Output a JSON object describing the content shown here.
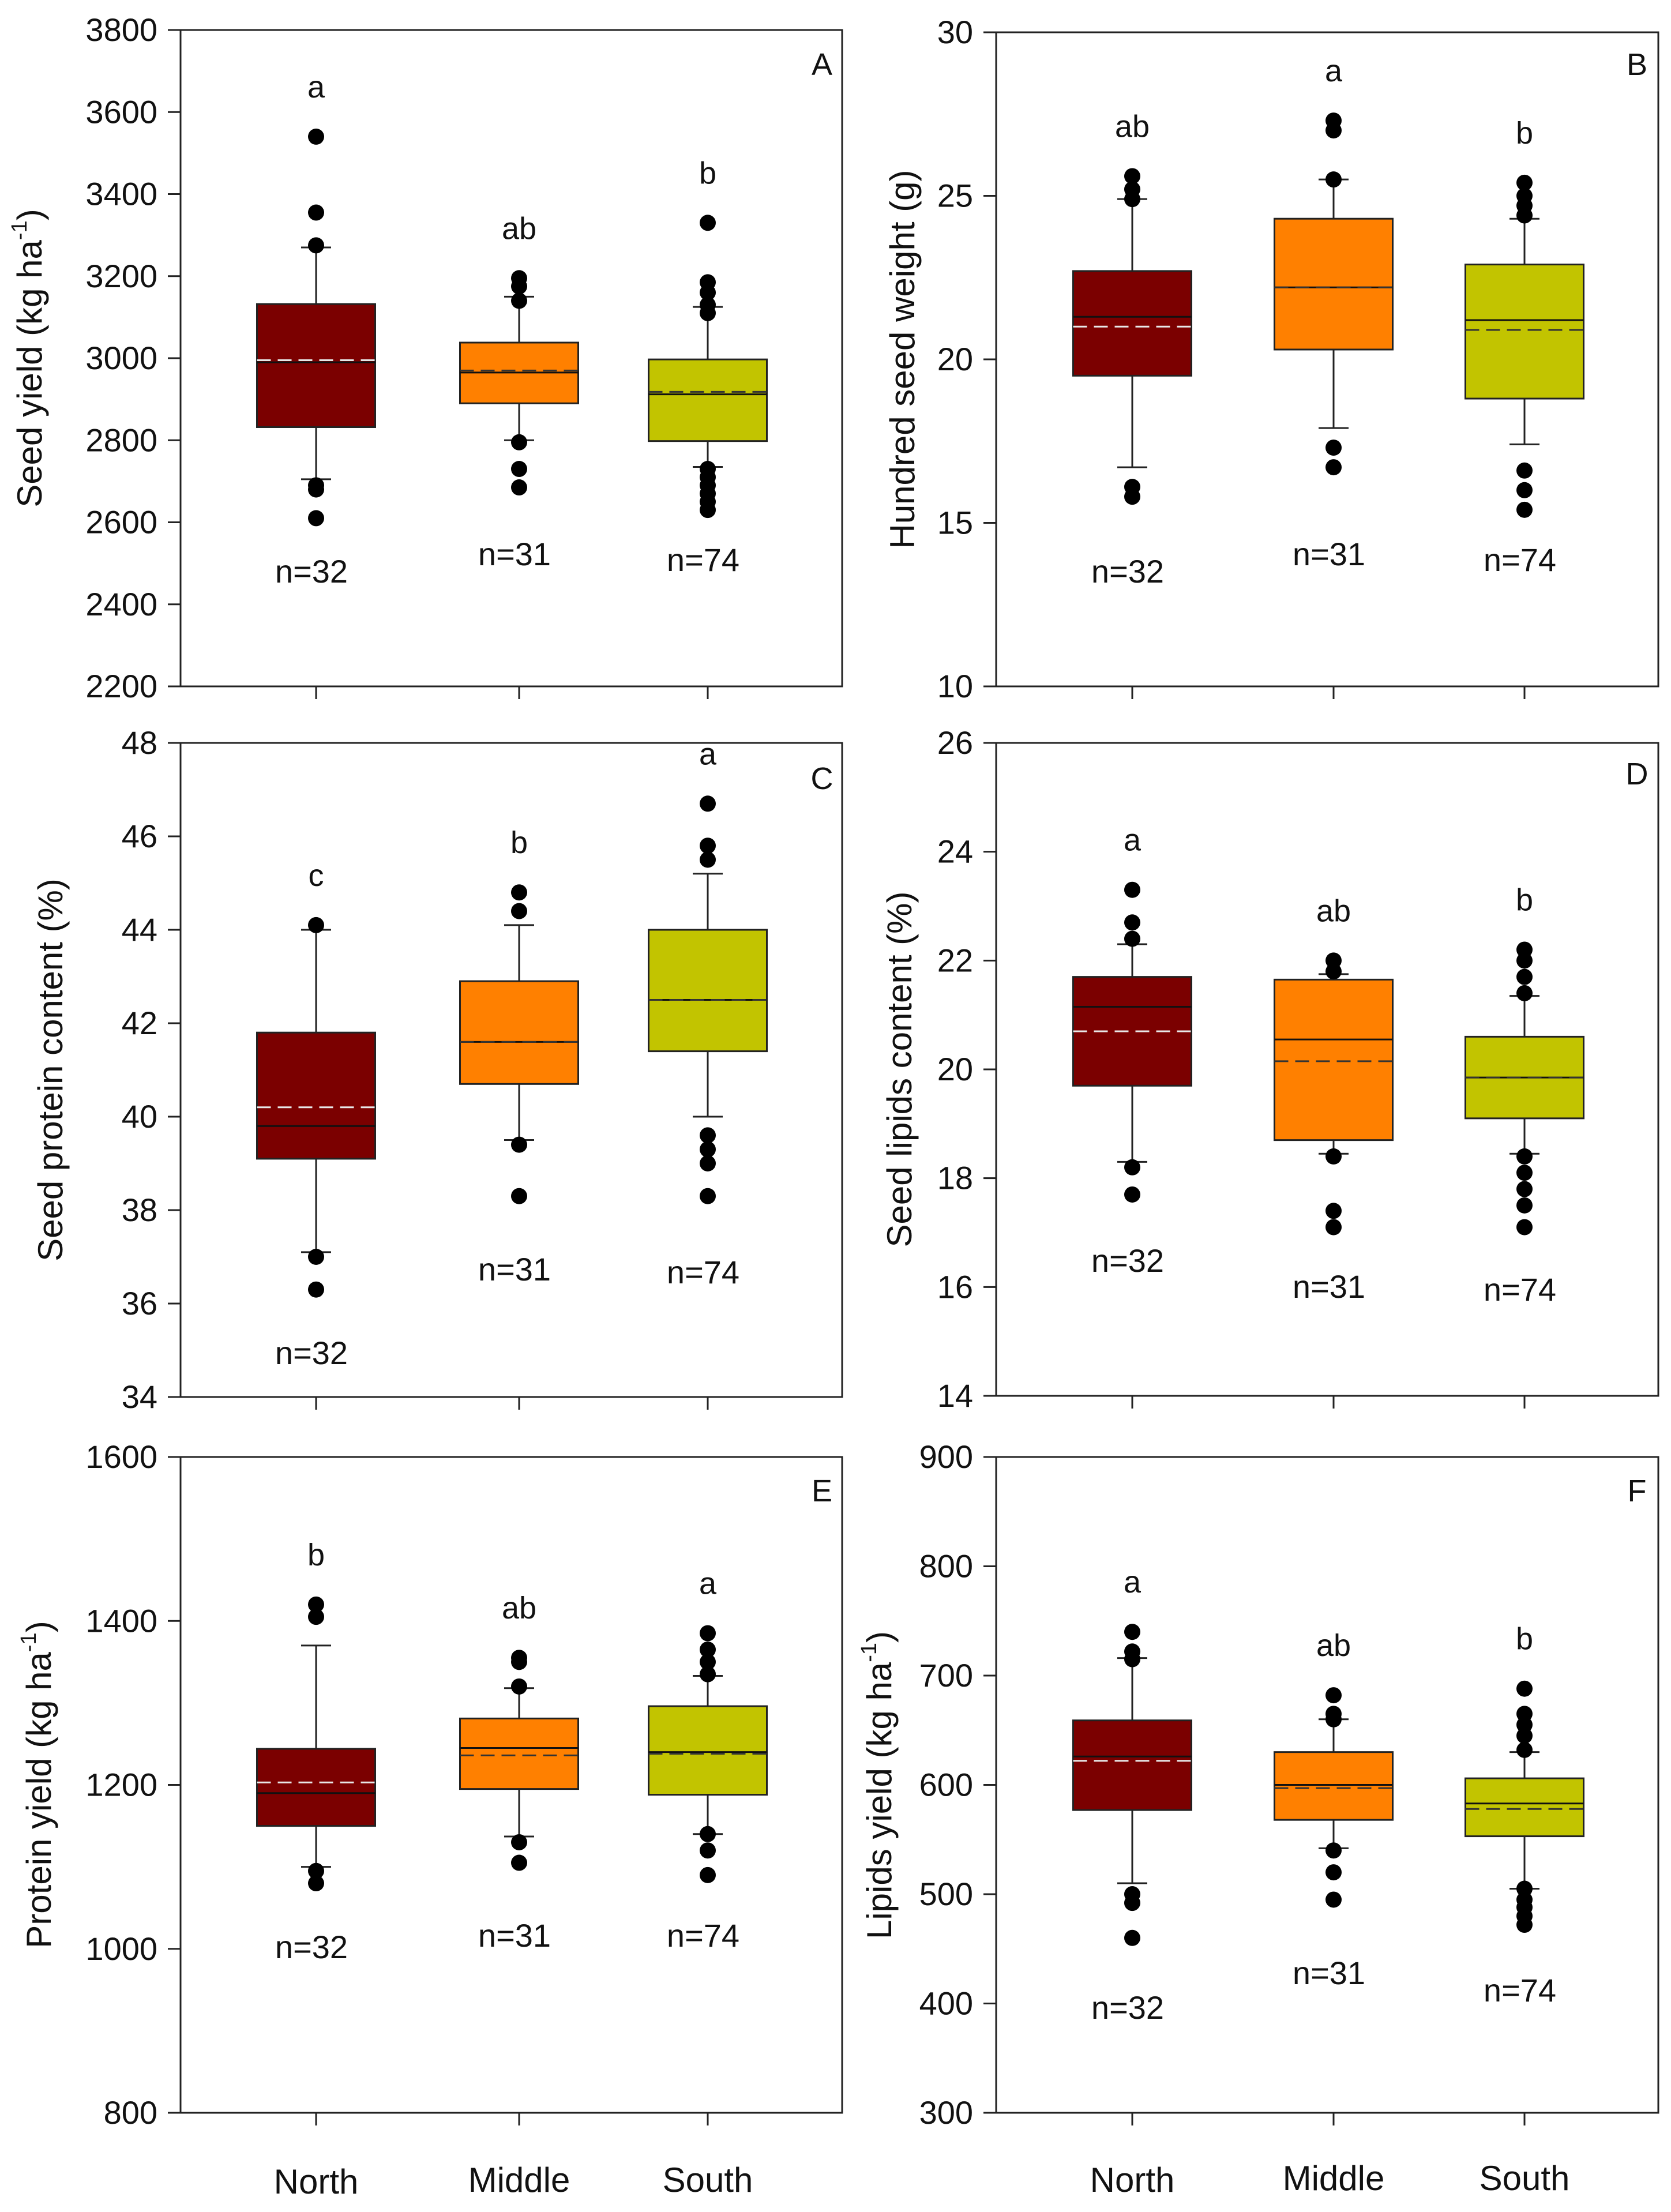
{
  "chart_data": [
    {
      "type": "box",
      "panel": "A",
      "ylabel": "Seed yield (kg ha",
      "ylabel_sup": "-1",
      "ylabel_close": ")",
      "ylim": [
        2200,
        3800
      ],
      "yticks": [
        2200,
        2400,
        2600,
        2800,
        3000,
        3200,
        3400,
        3600,
        3800
      ],
      "categories": [
        "North",
        "Middle",
        "South"
      ],
      "colors": [
        "#7b0000",
        "#ff8000",
        "#c2c400"
      ],
      "boxes": [
        {
          "q1": 2832,
          "median": 2990,
          "mean": 2995,
          "q3": 3132,
          "whisker_low": 2705,
          "whisker_high": 3270,
          "outliers": [
            2610,
            2680,
            2690,
            3275,
            3355,
            3540
          ],
          "n": "n=32",
          "sig": "a"
        },
        {
          "q1": 2890,
          "median": 2965,
          "mean": 2970,
          "q3": 3038,
          "whisker_low": 2800,
          "whisker_high": 3150,
          "outliers": [
            2685,
            2730,
            2795,
            3140,
            3175,
            3195
          ],
          "n": "n=31",
          "sig": "ab"
        },
        {
          "q1": 2798,
          "median": 2912,
          "mean": 2918,
          "q3": 2997,
          "whisker_low": 2735,
          "whisker_high": 3125,
          "outliers": [
            2630,
            2650,
            2670,
            2690,
            2710,
            2730,
            3110,
            3130,
            3160,
            3185,
            3330
          ],
          "n": "n=74",
          "sig": "b"
        }
      ]
    },
    {
      "type": "box",
      "panel": "B",
      "ylabel": "Hundred seed weight (g)",
      "ylim": [
        10,
        30
      ],
      "yticks": [
        10,
        15,
        20,
        25,
        30
      ],
      "categories": [
        "North",
        "Middle",
        "South"
      ],
      "colors": [
        "#7b0000",
        "#ff8000",
        "#c2c400"
      ],
      "boxes": [
        {
          "q1": 19.5,
          "median": 21.3,
          "mean": 21.0,
          "q3": 22.7,
          "whisker_low": 16.7,
          "whisker_high": 24.9,
          "outliers": [
            15.8,
            16.1,
            24.9,
            25.2,
            25.6
          ],
          "n": "n=32",
          "sig": "ab"
        },
        {
          "q1": 20.3,
          "median": 22.2,
          "mean": 22.2,
          "q3": 24.3,
          "whisker_low": 17.9,
          "whisker_high": 25.5,
          "outliers": [
            16.7,
            17.3,
            25.5,
            27.0,
            27.3
          ],
          "n": "n=31",
          "sig": "a"
        },
        {
          "q1": 18.8,
          "median": 21.2,
          "mean": 20.9,
          "q3": 22.9,
          "whisker_low": 17.4,
          "whisker_high": 24.3,
          "outliers": [
            15.4,
            16.0,
            16.6,
            24.4,
            24.7,
            25.0,
            25.4
          ],
          "n": "n=74",
          "sig": "b"
        }
      ]
    },
    {
      "type": "box",
      "panel": "C",
      "ylabel": "Seed protein content  (%)",
      "ylim": [
        34,
        48
      ],
      "yticks": [
        34,
        36,
        38,
        40,
        42,
        44,
        46,
        48
      ],
      "categories": [
        "North",
        "Middle",
        "South"
      ],
      "colors": [
        "#7b0000",
        "#ff8000",
        "#c2c400"
      ],
      "boxes": [
        {
          "q1": 39.1,
          "median": 39.8,
          "mean": 40.2,
          "q3": 41.8,
          "whisker_low": 37.1,
          "whisker_high": 44.0,
          "outliers": [
            36.3,
            37.0,
            44.1
          ],
          "n": "n=32",
          "sig": "c"
        },
        {
          "q1": 40.7,
          "median": 41.6,
          "mean": 41.6,
          "q3": 42.9,
          "whisker_low": 39.5,
          "whisker_high": 44.1,
          "outliers": [
            38.3,
            39.4,
            44.4,
            44.8
          ],
          "n": "n=31",
          "sig": "b"
        },
        {
          "q1": 41.4,
          "median": 42.5,
          "mean": 42.5,
          "q3": 44.0,
          "whisker_low": 40.0,
          "whisker_high": 45.2,
          "outliers": [
            38.3,
            39.0,
            39.3,
            39.6,
            45.5,
            45.8,
            46.7
          ],
          "n": "n=74",
          "sig": "a"
        }
      ]
    },
    {
      "type": "box",
      "panel": "D",
      "ylabel": "Seed lipids content  (%)",
      "ylim": [
        14,
        26
      ],
      "yticks": [
        14,
        16,
        18,
        20,
        22,
        24,
        26
      ],
      "categories": [
        "North",
        "Middle",
        "South"
      ],
      "colors": [
        "#7b0000",
        "#ff8000",
        "#c2c400"
      ],
      "boxes": [
        {
          "q1": 19.7,
          "median": 21.15,
          "mean": 20.7,
          "q3": 21.7,
          "whisker_low": 18.3,
          "whisker_high": 22.3,
          "outliers": [
            17.7,
            18.2,
            22.4,
            22.7,
            23.3
          ],
          "n": "n=32",
          "sig": "a"
        },
        {
          "q1": 18.7,
          "median": 20.55,
          "mean": 20.15,
          "q3": 21.65,
          "whisker_low": 18.45,
          "whisker_high": 21.75,
          "outliers": [
            17.1,
            17.4,
            18.4,
            21.8,
            22.0
          ],
          "n": "n=31",
          "sig": "ab"
        },
        {
          "q1": 19.1,
          "median": 19.85,
          "mean": 19.85,
          "q3": 20.6,
          "whisker_low": 18.45,
          "whisker_high": 21.35,
          "outliers": [
            17.1,
            17.5,
            17.8,
            18.1,
            18.4,
            21.4,
            21.7,
            22.0,
            22.2
          ],
          "n": "n=74",
          "sig": "b"
        }
      ]
    },
    {
      "type": "box",
      "panel": "E",
      "ylabel": "Protein yield (kg ha",
      "ylabel_sup": "-1",
      "ylabel_close": ")",
      "ylim": [
        800,
        1600
      ],
      "yticks": [
        800,
        1000,
        1200,
        1400,
        1600
      ],
      "categories": [
        "North",
        "Middle",
        "South"
      ],
      "colors": [
        "#7b0000",
        "#ff8000",
        "#c2c400"
      ],
      "boxes": [
        {
          "q1": 1150,
          "median": 1190,
          "mean": 1203,
          "q3": 1244,
          "whisker_low": 1100,
          "whisker_high": 1370,
          "outliers": [
            1080,
            1095,
            1405,
            1420
          ],
          "n": "n=32",
          "sig": "b"
        },
        {
          "q1": 1195,
          "median": 1245,
          "mean": 1236,
          "q3": 1281,
          "whisker_low": 1137,
          "whisker_high": 1318,
          "outliers": [
            1105,
            1130,
            1320,
            1350,
            1355
          ],
          "n": "n=31",
          "sig": "ab"
        },
        {
          "q1": 1188,
          "median": 1240,
          "mean": 1238,
          "q3": 1296,
          "whisker_low": 1140,
          "whisker_high": 1333,
          "outliers": [
            1090,
            1120,
            1140,
            1335,
            1350,
            1365,
            1385
          ],
          "n": "n=74",
          "sig": "a"
        }
      ]
    },
    {
      "type": "box",
      "panel": "F",
      "ylabel": "Lipids yield (kg ha",
      "ylabel_sup": "-1",
      "ylabel_close": ")",
      "ylim": [
        300,
        900
      ],
      "yticks": [
        300,
        400,
        500,
        600,
        700,
        800,
        900
      ],
      "categories": [
        "North",
        "Middle",
        "South"
      ],
      "colors": [
        "#7b0000",
        "#ff8000",
        "#c2c400"
      ],
      "boxes": [
        {
          "q1": 577,
          "median": 626,
          "mean": 622,
          "q3": 659,
          "whisker_low": 510,
          "whisker_high": 716,
          "outliers": [
            460,
            492,
            500,
            715,
            722,
            740
          ],
          "n": "n=32",
          "sig": "a"
        },
        {
          "q1": 568,
          "median": 600,
          "mean": 597,
          "q3": 630,
          "whisker_low": 542,
          "whisker_high": 660,
          "outliers": [
            495,
            520,
            540,
            660,
            665,
            682
          ],
          "n": "n=31",
          "sig": "ab"
        },
        {
          "q1": 553,
          "median": 583,
          "mean": 578,
          "q3": 606,
          "whisker_low": 505,
          "whisker_high": 630,
          "outliers": [
            472,
            480,
            488,
            495,
            505,
            632,
            645,
            655,
            665,
            688
          ],
          "n": "n=74",
          "sig": "b"
        }
      ]
    }
  ],
  "x_categories": [
    "North",
    "Middle",
    "South"
  ]
}
